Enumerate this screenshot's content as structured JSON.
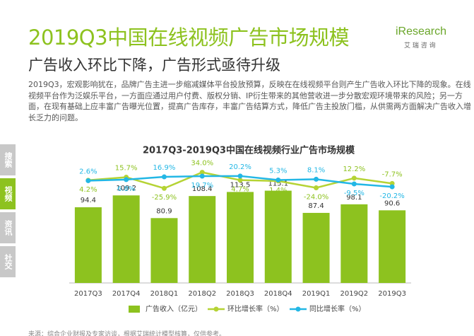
{
  "header": {
    "title": "2019Q3中国在线视频广告市场规模",
    "subtitle": "广告收入环比下降，广告形式亟待升级",
    "logo": "iResearch",
    "logo_sub": "艾 瑞 咨 询"
  },
  "body": "2019Q3，宏观影响犹在，品牌广告主进一步缩减媒体平台投放预算，反映在在线视频平台则产生广告收入环比下降的现象。在线视频平台作为泛娱乐平台，一方面应通过用户付费、版权分销、IP衍生带来的其他营收进一步分散宏观环境带来的风险；另一方面，在现有基础上应丰富广告曝光位置，提高广告库存，丰富广告结算方式，降低广告主投放门槛，从供需两方面解决广告收入增长乏力的问题。",
  "sidebar": [
    "搜索",
    "视频",
    "资讯",
    "社交"
  ],
  "source": "来源：综合企业财报及专家访谈，根据艾瑞统计模型核算，仅供参考。",
  "chart_data": {
    "type": "bar",
    "title": "2017Q3-2019Q3中国在线视频行业广告市场规模",
    "categories": [
      "2017Q3",
      "2017Q4",
      "2018Q1",
      "2018Q2",
      "2018Q3",
      "2018Q4",
      "2019Q1",
      "2019Q2",
      "2019Q3"
    ],
    "ylim": [
      0,
      150
    ],
    "y2lim": [
      -380,
      70
    ],
    "series": [
      {
        "name": "广告收入（亿元）",
        "type": "bar",
        "color": "#8dc21f",
        "values": [
          94.4,
          109.2,
          80.9,
          108.4,
          113.5,
          115.1,
          87.4,
          98.1,
          90.6
        ]
      },
      {
        "name": "环比增长率（%）",
        "type": "line",
        "axis": "y2",
        "color": "#b5d334",
        "values": [
          4.2,
          15.7,
          -25.9,
          34.0,
          4.7,
          1.4,
          -24.0,
          12.2,
          -7.7
        ],
        "value_labels": [
          "4.2%",
          "15.7%",
          "-25.9%",
          "34.0%",
          "4.7%",
          "1.4%",
          "-24.0%",
          "12.2%",
          "-7.7%"
        ]
      },
      {
        "name": "同比增长率（%）",
        "type": "line",
        "axis": "y2",
        "color": "#23b7e5",
        "values": [
          2.6,
          6.8,
          16.9,
          19.7,
          20.2,
          5.3,
          8.1,
          -9.5,
          -20.2
        ],
        "value_labels": [
          "2.6%",
          "6.8%",
          "16.9%",
          "19.7%",
          "20.2%",
          "5.3%",
          "8.1%",
          "-9.5%",
          "-20.2%"
        ]
      }
    ]
  }
}
